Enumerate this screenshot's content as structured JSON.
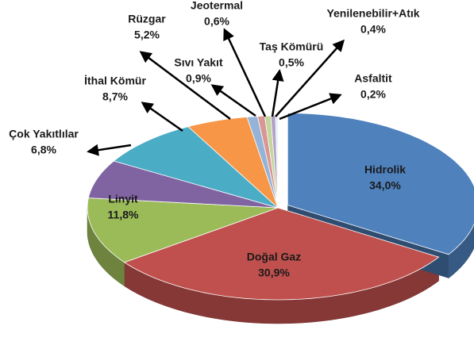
{
  "chart_data": {
    "type": "pie3d",
    "categories": [
      "Hidrolik",
      "Doğal Gaz",
      "Linyit",
      "Çok Yakıtlılar",
      "İthal Kömür",
      "Rüzgar",
      "Sıvı Yakıt",
      "Jeotermal",
      "Taş Kömürü",
      "Yenilenebilir+Atık",
      "Asfaltit"
    ],
    "values": [
      34.0,
      30.9,
      11.8,
      6.8,
      8.7,
      5.2,
      0.9,
      0.6,
      0.5,
      0.4,
      0.2
    ],
    "value_labels": [
      "34,0%",
      "30,9%",
      "11,8%",
      "6,8%",
      "8,7%",
      "5,2%",
      "0,9%",
      "0,6%",
      "0,5%",
      "0,4%",
      "0,2%"
    ],
    "colors": [
      "#4f81bd",
      "#c0504d",
      "#9bbb59",
      "#8064a2",
      "#4bacc6",
      "#f79646",
      "#95b3d7",
      "#d99694",
      "#c3d69b",
      "#b3a2c7",
      "#dbeef4"
    ]
  }
}
